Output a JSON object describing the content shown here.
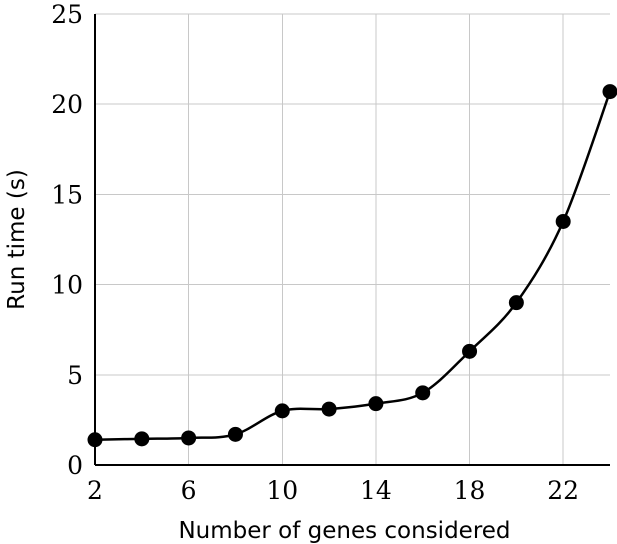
{
  "chart_data": {
    "type": "line",
    "title": "",
    "xlabel": "Number of genes considered",
    "ylabel": "Run time (s)",
    "xlim": [
      2,
      24
    ],
    "ylim": [
      0,
      25
    ],
    "x_ticks": [
      2,
      6,
      10,
      14,
      18,
      22
    ],
    "y_ticks": [
      0,
      5,
      10,
      15,
      20,
      25
    ],
    "grid": true,
    "legend": "none",
    "line_color": "#000000",
    "marker": "filled-circle",
    "smooth": true,
    "series": [
      {
        "x": [
          2,
          4,
          6,
          8,
          10,
          12,
          14,
          16,
          18,
          20,
          22,
          24
        ],
        "values": [
          1.4,
          1.45,
          1.5,
          1.7,
          3.0,
          3.1,
          3.4,
          4.0,
          6.3,
          9.0,
          13.5,
          20.7
        ]
      }
    ]
  }
}
